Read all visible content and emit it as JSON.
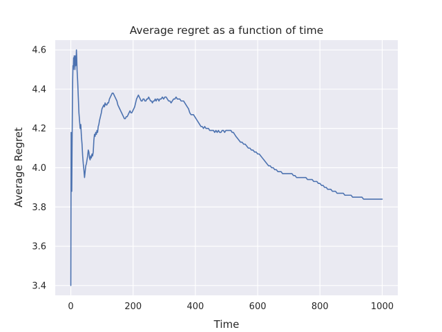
{
  "chart_data": {
    "type": "line",
    "title": "Average regret as a function of time",
    "xlabel": "Time",
    "ylabel": "Average Regret",
    "xlim": [
      -50,
      1050
    ],
    "ylim": [
      3.35,
      4.65
    ],
    "xticks": [
      0,
      200,
      400,
      600,
      800,
      1000
    ],
    "xtick_labels": [
      "0",
      "200",
      "400",
      "600",
      "800",
      "1000"
    ],
    "yticks": [
      3.4,
      3.6,
      3.8,
      4.0,
      4.2,
      4.4,
      4.6
    ],
    "ytick_labels": [
      "3.4",
      "3.6",
      "3.8",
      "4.0",
      "4.2",
      "4.4",
      "4.6"
    ],
    "grid": true,
    "background": "#eaeaf2",
    "grid_color": "#ffffff",
    "line_color": "#4c72b0",
    "series": [
      {
        "points": [
          [
            0,
            3.4
          ],
          [
            1,
            4.18
          ],
          [
            2,
            4.0
          ],
          [
            3,
            3.88
          ],
          [
            4,
            4.1
          ],
          [
            5,
            4.3
          ],
          [
            6,
            4.45
          ],
          [
            7,
            4.52
          ],
          [
            8,
            4.5
          ],
          [
            9,
            4.56
          ],
          [
            10,
            4.54
          ],
          [
            11,
            4.57
          ],
          [
            12,
            4.52
          ],
          [
            13,
            4.5
          ],
          [
            14,
            4.55
          ],
          [
            15,
            4.57
          ],
          [
            16,
            4.52
          ],
          [
            17,
            4.55
          ],
          [
            18,
            4.6
          ],
          [
            19,
            4.56
          ],
          [
            20,
            4.5
          ],
          [
            22,
            4.44
          ],
          [
            24,
            4.36
          ],
          [
            26,
            4.28
          ],
          [
            28,
            4.24
          ],
          [
            30,
            4.2
          ],
          [
            32,
            4.22
          ],
          [
            34,
            4.16
          ],
          [
            36,
            4.12
          ],
          [
            38,
            4.06
          ],
          [
            40,
            4.02
          ],
          [
            42,
            3.99
          ],
          [
            44,
            3.95
          ],
          [
            46,
            3.98
          ],
          [
            48,
            4.01
          ],
          [
            50,
            4.02
          ],
          [
            52,
            4.04
          ],
          [
            54,
            4.06
          ],
          [
            56,
            4.09
          ],
          [
            58,
            4.08
          ],
          [
            60,
            4.05
          ],
          [
            62,
            4.04
          ],
          [
            64,
            4.06
          ],
          [
            66,
            4.05
          ],
          [
            68,
            4.07
          ],
          [
            70,
            4.06
          ],
          [
            72,
            4.08
          ],
          [
            74,
            4.14
          ],
          [
            76,
            4.17
          ],
          [
            78,
            4.16
          ],
          [
            80,
            4.18
          ],
          [
            82,
            4.17
          ],
          [
            84,
            4.19
          ],
          [
            86,
            4.18
          ],
          [
            88,
            4.21
          ],
          [
            90,
            4.22
          ],
          [
            92,
            4.24
          ],
          [
            95,
            4.26
          ],
          [
            98,
            4.28
          ],
          [
            100,
            4.3
          ],
          [
            103,
            4.31
          ],
          [
            106,
            4.32
          ],
          [
            108,
            4.31
          ],
          [
            110,
            4.33
          ],
          [
            113,
            4.32
          ],
          [
            116,
            4.32
          ],
          [
            118,
            4.33
          ],
          [
            121,
            4.33
          ],
          [
            124,
            4.35
          ],
          [
            127,
            4.36
          ],
          [
            130,
            4.37
          ],
          [
            133,
            4.38
          ],
          [
            136,
            4.38
          ],
          [
            139,
            4.37
          ],
          [
            142,
            4.36
          ],
          [
            145,
            4.35
          ],
          [
            148,
            4.34
          ],
          [
            151,
            4.32
          ],
          [
            154,
            4.31
          ],
          [
            157,
            4.3
          ],
          [
            160,
            4.29
          ],
          [
            163,
            4.28
          ],
          [
            166,
            4.27
          ],
          [
            169,
            4.26
          ],
          [
            172,
            4.25
          ],
          [
            175,
            4.25
          ],
          [
            178,
            4.26
          ],
          [
            181,
            4.26
          ],
          [
            184,
            4.27
          ],
          [
            187,
            4.28
          ],
          [
            190,
            4.29
          ],
          [
            193,
            4.28
          ],
          [
            196,
            4.28
          ],
          [
            199,
            4.29
          ],
          [
            202,
            4.3
          ],
          [
            205,
            4.31
          ],
          [
            208,
            4.33
          ],
          [
            211,
            4.35
          ],
          [
            214,
            4.36
          ],
          [
            217,
            4.37
          ],
          [
            220,
            4.36
          ],
          [
            223,
            4.35
          ],
          [
            226,
            4.34
          ],
          [
            229,
            4.34
          ],
          [
            232,
            4.35
          ],
          [
            235,
            4.35
          ],
          [
            238,
            4.34
          ],
          [
            241,
            4.34
          ],
          [
            244,
            4.35
          ],
          [
            247,
            4.35
          ],
          [
            250,
            4.36
          ],
          [
            253,
            4.35
          ],
          [
            256,
            4.34
          ],
          [
            259,
            4.34
          ],
          [
            262,
            4.33
          ],
          [
            265,
            4.34
          ],
          [
            268,
            4.34
          ],
          [
            271,
            4.35
          ],
          [
            274,
            4.34
          ],
          [
            277,
            4.35
          ],
          [
            280,
            4.35
          ],
          [
            283,
            4.34
          ],
          [
            286,
            4.35
          ],
          [
            290,
            4.35
          ],
          [
            294,
            4.36
          ],
          [
            298,
            4.35
          ],
          [
            302,
            4.36
          ],
          [
            306,
            4.36
          ],
          [
            310,
            4.35
          ],
          [
            314,
            4.34
          ],
          [
            318,
            4.34
          ],
          [
            322,
            4.33
          ],
          [
            326,
            4.34
          ],
          [
            330,
            4.35
          ],
          [
            334,
            4.35
          ],
          [
            338,
            4.36
          ],
          [
            342,
            4.35
          ],
          [
            346,
            4.35
          ],
          [
            350,
            4.35
          ],
          [
            354,
            4.34
          ],
          [
            358,
            4.34
          ],
          [
            362,
            4.34
          ],
          [
            366,
            4.33
          ],
          [
            370,
            4.32
          ],
          [
            374,
            4.31
          ],
          [
            378,
            4.3
          ],
          [
            382,
            4.28
          ],
          [
            386,
            4.27
          ],
          [
            390,
            4.27
          ],
          [
            394,
            4.27
          ],
          [
            398,
            4.26
          ],
          [
            402,
            4.25
          ],
          [
            406,
            4.24
          ],
          [
            410,
            4.23
          ],
          [
            414,
            4.22
          ],
          [
            418,
            4.21
          ],
          [
            422,
            4.21
          ],
          [
            426,
            4.2
          ],
          [
            430,
            4.21
          ],
          [
            434,
            4.2
          ],
          [
            438,
            4.2
          ],
          [
            442,
            4.2
          ],
          [
            446,
            4.19
          ],
          [
            450,
            4.19
          ],
          [
            454,
            4.19
          ],
          [
            458,
            4.19
          ],
          [
            462,
            4.18
          ],
          [
            466,
            4.19
          ],
          [
            470,
            4.18
          ],
          [
            474,
            4.19
          ],
          [
            478,
            4.18
          ],
          [
            482,
            4.18
          ],
          [
            486,
            4.19
          ],
          [
            490,
            4.19
          ],
          [
            494,
            4.18
          ],
          [
            498,
            4.19
          ],
          [
            502,
            4.19
          ],
          [
            506,
            4.19
          ],
          [
            510,
            4.19
          ],
          [
            514,
            4.19
          ],
          [
            518,
            4.18
          ],
          [
            522,
            4.18
          ],
          [
            526,
            4.17
          ],
          [
            530,
            4.16
          ],
          [
            535,
            4.15
          ],
          [
            540,
            4.14
          ],
          [
            545,
            4.13
          ],
          [
            550,
            4.13
          ],
          [
            555,
            4.12
          ],
          [
            560,
            4.12
          ],
          [
            565,
            4.11
          ],
          [
            570,
            4.1
          ],
          [
            575,
            4.1
          ],
          [
            580,
            4.09
          ],
          [
            585,
            4.09
          ],
          [
            590,
            4.08
          ],
          [
            595,
            4.08
          ],
          [
            600,
            4.07
          ],
          [
            605,
            4.07
          ],
          [
            610,
            4.06
          ],
          [
            615,
            4.05
          ],
          [
            620,
            4.04
          ],
          [
            625,
            4.03
          ],
          [
            630,
            4.02
          ],
          [
            635,
            4.01
          ],
          [
            640,
            4.01
          ],
          [
            645,
            4.0
          ],
          [
            650,
            4.0
          ],
          [
            655,
            3.99
          ],
          [
            660,
            3.99
          ],
          [
            665,
            3.98
          ],
          [
            670,
            3.98
          ],
          [
            675,
            3.98
          ],
          [
            680,
            3.97
          ],
          [
            685,
            3.97
          ],
          [
            690,
            3.97
          ],
          [
            695,
            3.97
          ],
          [
            700,
            3.97
          ],
          [
            705,
            3.97
          ],
          [
            710,
            3.97
          ],
          [
            715,
            3.96
          ],
          [
            720,
            3.96
          ],
          [
            725,
            3.95
          ],
          [
            730,
            3.95
          ],
          [
            735,
            3.95
          ],
          [
            740,
            3.95
          ],
          [
            745,
            3.95
          ],
          [
            750,
            3.95
          ],
          [
            755,
            3.95
          ],
          [
            760,
            3.94
          ],
          [
            765,
            3.94
          ],
          [
            770,
            3.94
          ],
          [
            775,
            3.94
          ],
          [
            780,
            3.93
          ],
          [
            785,
            3.93
          ],
          [
            790,
            3.93
          ],
          [
            795,
            3.92
          ],
          [
            800,
            3.92
          ],
          [
            805,
            3.91
          ],
          [
            810,
            3.91
          ],
          [
            815,
            3.9
          ],
          [
            820,
            3.9
          ],
          [
            825,
            3.89
          ],
          [
            830,
            3.89
          ],
          [
            835,
            3.89
          ],
          [
            840,
            3.88
          ],
          [
            845,
            3.88
          ],
          [
            850,
            3.88
          ],
          [
            855,
            3.87
          ],
          [
            860,
            3.87
          ],
          [
            865,
            3.87
          ],
          [
            870,
            3.87
          ],
          [
            875,
            3.87
          ],
          [
            880,
            3.86
          ],
          [
            885,
            3.86
          ],
          [
            890,
            3.86
          ],
          [
            895,
            3.86
          ],
          [
            900,
            3.86
          ],
          [
            905,
            3.85
          ],
          [
            910,
            3.85
          ],
          [
            915,
            3.85
          ],
          [
            920,
            3.85
          ],
          [
            925,
            3.85
          ],
          [
            930,
            3.85
          ],
          [
            935,
            3.85
          ],
          [
            940,
            3.84
          ],
          [
            945,
            3.84
          ],
          [
            950,
            3.84
          ],
          [
            955,
            3.84
          ],
          [
            960,
            3.84
          ],
          [
            965,
            3.84
          ],
          [
            970,
            3.84
          ],
          [
            975,
            3.84
          ],
          [
            980,
            3.84
          ],
          [
            985,
            3.84
          ],
          [
            990,
            3.84
          ],
          [
            995,
            3.84
          ],
          [
            1000,
            3.84
          ]
        ]
      }
    ]
  }
}
